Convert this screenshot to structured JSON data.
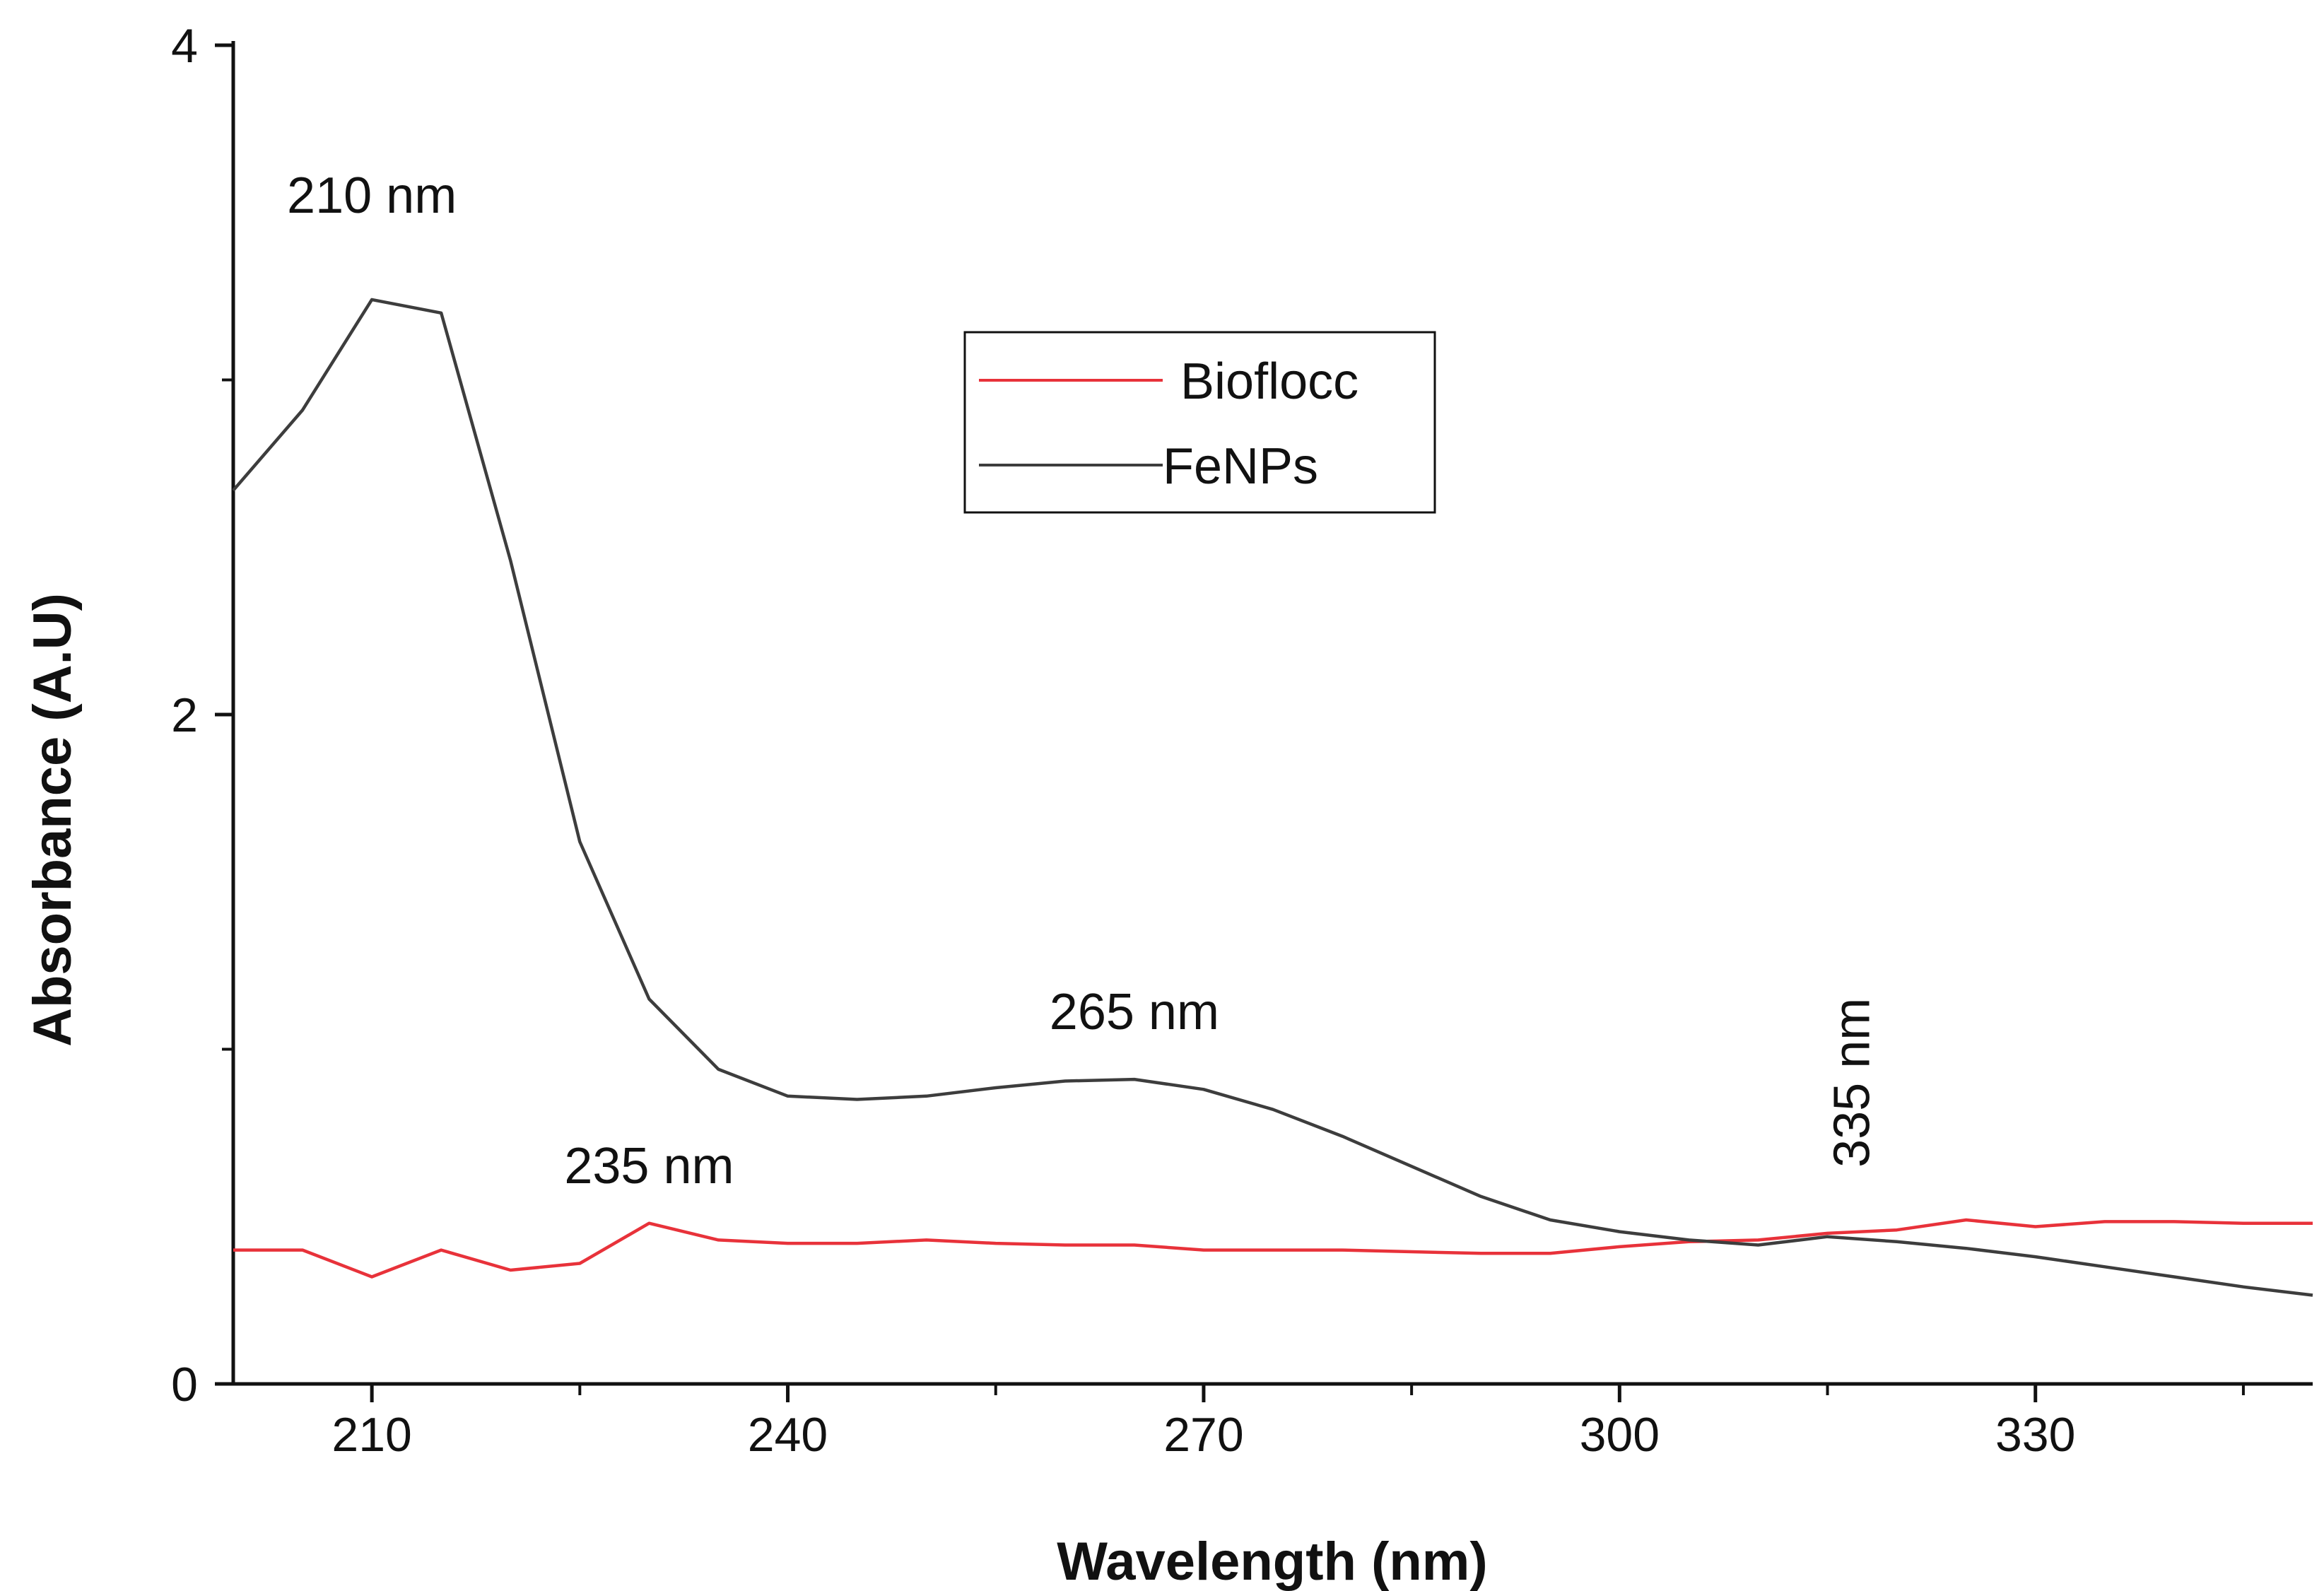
{
  "chart_data": {
    "type": "line",
    "title": "",
    "xlabel": "Wavelength (nm)",
    "ylabel": "Absorbance (A.U)",
    "xlim": [
      200,
      350
    ],
    "ylim": [
      0,
      4
    ],
    "x_major_ticks": [
      210,
      240,
      270,
      300,
      330
    ],
    "x_minor_ticks": [
      225,
      255,
      285,
      315,
      345
    ],
    "y_major_ticks": [
      0,
      2,
      4
    ],
    "y_minor_ticks": [
      1,
      3
    ],
    "grid": false,
    "legend_position": "top-center",
    "series": [
      {
        "name": "Bioflocc",
        "color": "#e8323a",
        "x": [
          200,
          205,
          210,
          215,
          220,
          225,
          230,
          235,
          240,
          245,
          250,
          255,
          260,
          265,
          270,
          275,
          280,
          285,
          290,
          295,
          300,
          305,
          310,
          315,
          320,
          325,
          330,
          335,
          340,
          345,
          350
        ],
        "y": [
          0.4,
          0.4,
          0.32,
          0.4,
          0.34,
          0.36,
          0.48,
          0.43,
          0.42,
          0.42,
          0.43,
          0.42,
          0.415,
          0.415,
          0.4,
          0.4,
          0.4,
          0.395,
          0.39,
          0.39,
          0.41,
          0.425,
          0.43,
          0.45,
          0.46,
          0.49,
          0.47,
          0.485,
          0.485,
          0.48,
          0.48
        ]
      },
      {
        "name": "FeNPs",
        "color": "#3d3d3d",
        "x": [
          200,
          205,
          210,
          215,
          220,
          225,
          230,
          235,
          240,
          245,
          250,
          255,
          260,
          265,
          270,
          275,
          280,
          285,
          290,
          295,
          300,
          305,
          310,
          315,
          320,
          325,
          330,
          335,
          340,
          345,
          350
        ],
        "y": [
          2.67,
          2.91,
          3.24,
          3.2,
          2.46,
          1.62,
          1.15,
          0.94,
          0.86,
          0.85,
          0.86,
          0.885,
          0.905,
          0.91,
          0.88,
          0.82,
          0.74,
          0.65,
          0.56,
          0.49,
          0.455,
          0.43,
          0.415,
          0.44,
          0.425,
          0.405,
          0.38,
          0.35,
          0.32,
          0.29,
          0.265
        ]
      }
    ],
    "annotations": [
      {
        "text": "210 nm",
        "x": 210,
        "y": 3.5,
        "rotation": 0
      },
      {
        "text": "265 nm",
        "x": 265,
        "y": 1.06,
        "rotation": 0
      },
      {
        "text": "235 nm",
        "x": 230,
        "y": 0.6,
        "rotation": 0
      },
      {
        "text": "335 nm",
        "x": 318,
        "y": 0.9,
        "rotation": -90
      }
    ]
  }
}
